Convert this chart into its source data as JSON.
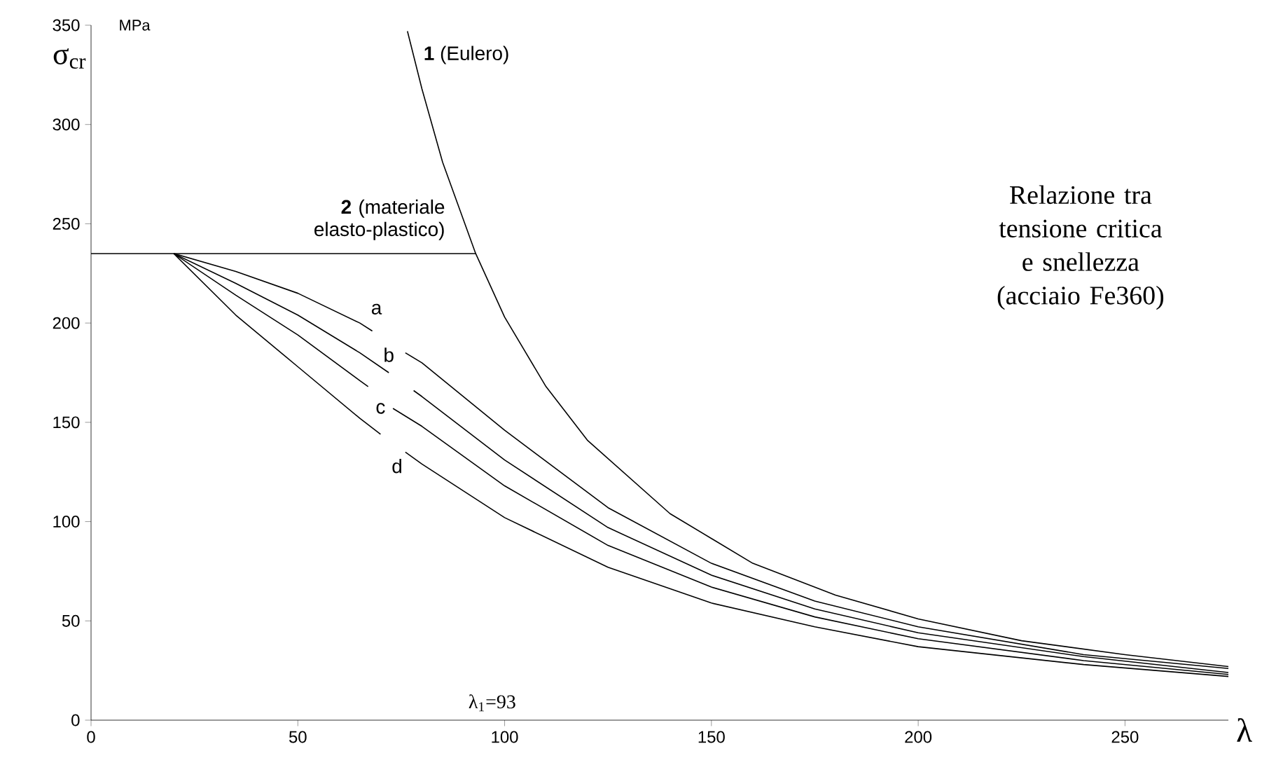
{
  "chart_data": {
    "type": "line",
    "xlabel": "λ",
    "ylabel": "σ$_{cr}$",
    "xlim": [
      0,
      275
    ],
    "ylim": [
      0,
      350
    ],
    "xticks": [
      0,
      50,
      100,
      150,
      200,
      250
    ],
    "yticks": [
      0,
      50,
      100,
      150,
      200,
      250,
      300,
      350
    ],
    "grid": false,
    "marker": "none",
    "line_style": "solid",
    "series": [
      {
        "name": "**1** (Eulero)",
        "color": "#000000",
        "x": [
          76.5,
          80,
          85,
          93,
          100,
          110,
          120,
          140,
          160,
          180,
          200,
          225,
          250,
          275
        ],
        "values": [
          347,
          318,
          281,
          235,
          203,
          168,
          141,
          104,
          79,
          63,
          51,
          40,
          33,
          27
        ]
      },
      {
        "name": "**2** (materiale elasto-plastico)",
        "color": "#000000",
        "x": [
          0,
          93
        ],
        "values": [
          235,
          235
        ]
      },
      {
        "name": "a",
        "color": "#000000",
        "x": [
          20,
          35,
          50,
          65,
          68,
          72,
          76,
          80,
          100,
          125,
          150,
          175,
          200,
          240,
          275
        ],
        "values": [
          235,
          226,
          215,
          200,
          196,
          null,
          185,
          180,
          146,
          107,
          79,
          60,
          47,
          33,
          26
        ]
      },
      {
        "name": "b",
        "color": "#000000",
        "x": [
          20,
          35,
          50,
          65,
          72,
          75,
          78,
          80,
          100,
          125,
          150,
          175,
          200,
          240,
          275
        ],
        "values": [
          235,
          220,
          204,
          185,
          175,
          null,
          166,
          163,
          131,
          97,
          73,
          56,
          44,
          32,
          24
        ]
      },
      {
        "name": "c",
        "color": "#000000",
        "x": [
          20,
          35,
          50,
          65,
          67,
          70,
          73,
          80,
          100,
          125,
          150,
          175,
          200,
          240,
          275
        ],
        "values": [
          235,
          214,
          194,
          171,
          168,
          null,
          157,
          148,
          118,
          88,
          67,
          52,
          41,
          30,
          23
        ]
      },
      {
        "name": "d",
        "color": "#000000",
        "x": [
          20,
          35,
          50,
          65,
          70,
          73,
          76,
          80,
          100,
          125,
          150,
          175,
          200,
          240,
          275
        ],
        "values": [
          235,
          204,
          178,
          152,
          144,
          null,
          135,
          129,
          102,
          77,
          59,
          47,
          37,
          28,
          22
        ]
      }
    ],
    "annotations": [
      "MPa",
      "Relazione tra tensione critica e snellezza (acciaio Fe360)",
      "λ$_{1}$=93"
    ]
  }
}
